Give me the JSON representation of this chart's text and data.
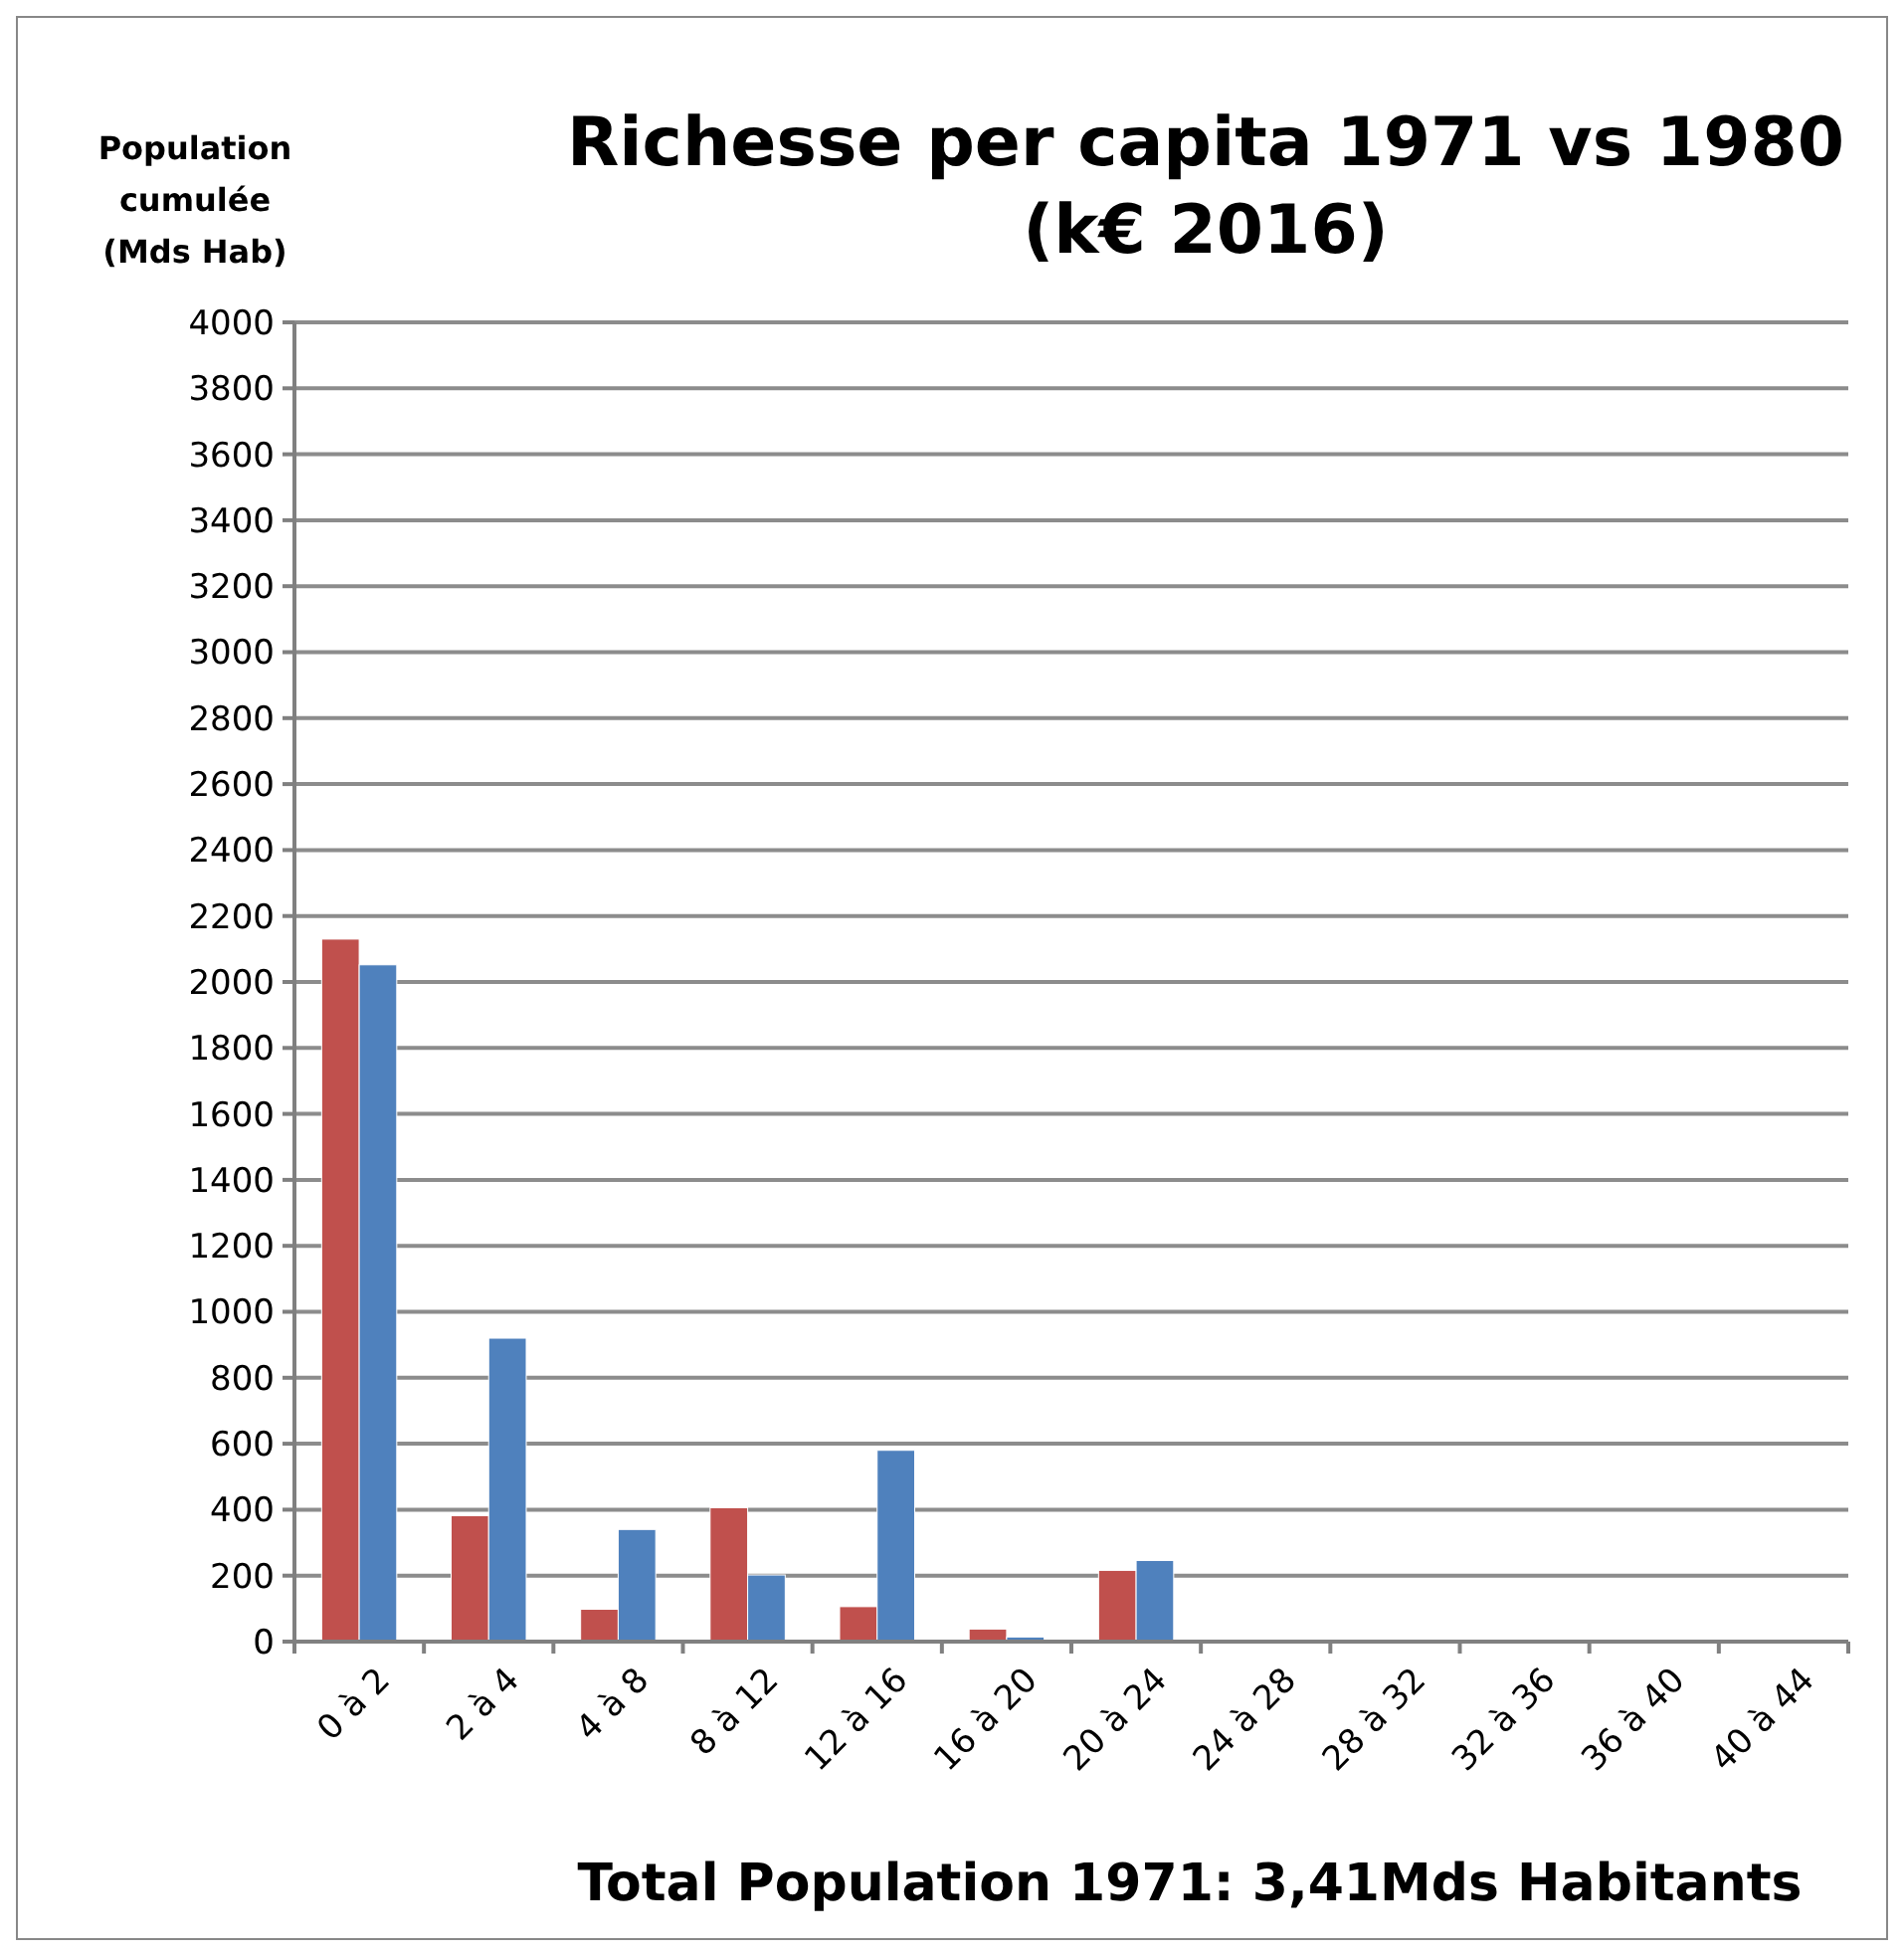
{
  "chart_data": {
    "type": "bar",
    "title": "Richesse per capita 1971 vs 1980 (k€ 2016)",
    "ylabel": "Population cumulée (Mds Hab)",
    "categories": [
      "0 à 2",
      "2 à 4",
      "4 à 8",
      "8 à 12",
      "12 à 16",
      "16 à 20",
      "20 à 24",
      "24 à 28",
      "28 à 32",
      "32 à 36",
      "36 à 40",
      "40 à 44"
    ],
    "series": [
      {
        "color": "#c0504d",
        "values": [
          2130,
          382,
          98,
          406,
          106,
          38,
          216,
          0,
          0,
          0,
          0,
          0
        ]
      },
      {
        "color": "#4f81bd",
        "values": [
          2052,
          920,
          340,
          202,
          580,
          14,
          246,
          0,
          0,
          0,
          0,
          0
        ]
      }
    ],
    "ylim": [
      0,
      4000
    ],
    "yticks": [
      0,
      200,
      400,
      600,
      800,
      1000,
      1200,
      1400,
      1600,
      1800,
      2000,
      2200,
      2400,
      2600,
      2800,
      3000,
      3200,
      3400,
      3600,
      3800,
      4000
    ],
    "grid": "y",
    "annotations": [
      "Total Population  1971: 3,41Mds Habitants"
    ]
  }
}
